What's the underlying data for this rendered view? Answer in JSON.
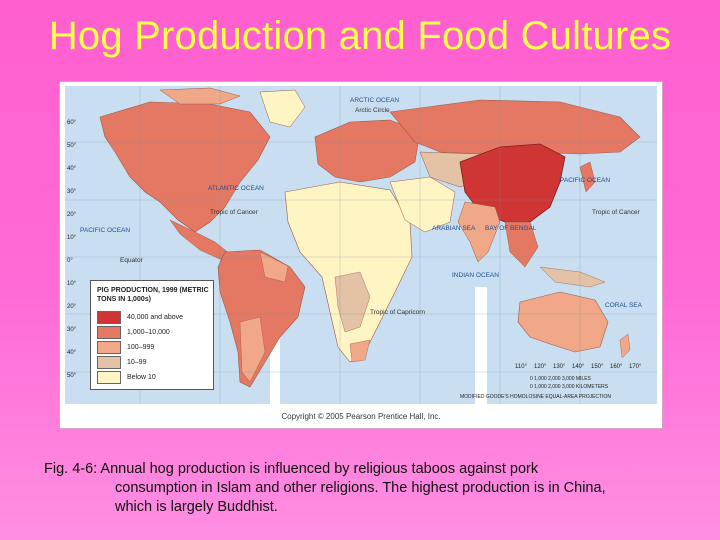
{
  "title": "Hog Production and Food Cultures",
  "map": {
    "labels": {
      "arctic_ocean": "ARCTIC OCEAN",
      "arctic_circle": "Arctic Circle",
      "atlantic_ocean": "ATLANTIC OCEAN",
      "pacific_ocean_w": "PACIFIC OCEAN",
      "pacific_ocean_e": "PACIFIC OCEAN",
      "tropic_cancer_w": "Tropic of Cancer",
      "tropic_cancer_e": "Tropic of Cancer",
      "equator": "Equator",
      "tropic_capricorn": "Tropic of Capricorn",
      "arabian_sea": "ARABIAN SEA",
      "bay_of_bengal": "BAY OF BENGAL",
      "indian_ocean": "INDIAN OCEAN",
      "coral_sea": "CORAL SEA"
    },
    "lat_ticks_left": [
      "60°",
      "50°",
      "40°",
      "30°",
      "20°",
      "10°",
      "0°",
      "10°",
      "20°",
      "30°",
      "40°",
      "50°"
    ],
    "lon_ticks_bottom": [
      "110°",
      "120°",
      "130°",
      "140°",
      "150°",
      "160°",
      "170°"
    ],
    "scale_text": "0   1,000   2,000   3,000 MILES",
    "scale_km": "0  1,000  2,000  3,000 KILOMETERS",
    "projection": "MODIFIED GOODE'S HOMOLOSINE EQUAL-AREA PROJECTION",
    "copyright": "Copyright © 2005 Pearson Prentice Hall, Inc.",
    "colors": {
      "ocean": "#c9def0",
      "class1": "#cf3535",
      "class2": "#e57862",
      "class3": "#f0a888",
      "class4": "#e3c2a5",
      "class5": "#fff4c4"
    }
  },
  "legend": {
    "title": "PIG PRODUCTION, 1999 (METRIC TONS IN 1,000s)",
    "items": [
      {
        "label": "40,000 and above",
        "color": "#cf3535"
      },
      {
        "label": "1,000–10,000",
        "color": "#e57862"
      },
      {
        "label": "100–999",
        "color": "#f0a888"
      },
      {
        "label": "10–99",
        "color": "#e3c2a5"
      },
      {
        "label": "Below 10",
        "color": "#fff4c4"
      }
    ]
  },
  "caption": {
    "line1": "Fig. 4-6: Annual hog production is influenced by religious taboos against pork",
    "line2": "consumption in Islam and other religions. The highest production is in China,",
    "line3": "which is largely Buddhist."
  }
}
